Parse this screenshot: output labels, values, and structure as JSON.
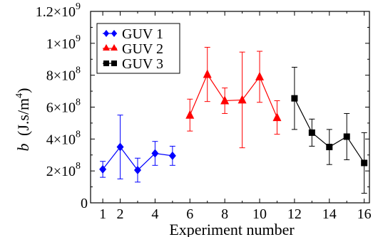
{
  "chart_data": {
    "type": "scatter",
    "xlabel": "Experiment number",
    "ylabel_symbol": "b",
    "ylabel_unit": "(J.s/m",
    "ylabel_unit_exp": "4",
    "ylabel_unit_close": ")",
    "xlim": [
      0.3,
      16.3
    ],
    "ylim": [
      0,
      1200000000
    ],
    "x_ticks": [
      1,
      2,
      4,
      6,
      8,
      10,
      12,
      14,
      16
    ],
    "y_ticks": [
      {
        "value": 0,
        "mantissa": "0",
        "exp": ""
      },
      {
        "value": 200000000,
        "mantissa": "2×10",
        "exp": "8"
      },
      {
        "value": 400000000,
        "mantissa": "4×10",
        "exp": "8"
      },
      {
        "value": 600000000,
        "mantissa": "6×10",
        "exp": "8"
      },
      {
        "value": 800000000,
        "mantissa": "8×10",
        "exp": "8"
      },
      {
        "value": 1000000000,
        "mantissa": "1×10",
        "exp": "9"
      },
      {
        "value": 1200000000,
        "mantissa": "1.2×10",
        "exp": "9"
      }
    ],
    "legend_position": "top-left",
    "series": [
      {
        "name": "GUV 1",
        "color": "#0000ff",
        "marker": "diamond",
        "points": [
          {
            "x": 1,
            "y": 210000000,
            "err_low": 50000000,
            "err_high": 50000000
          },
          {
            "x": 2,
            "y": 350000000,
            "err_low": 200000000,
            "err_high": 200000000
          },
          {
            "x": 3,
            "y": 205000000,
            "err_low": 75000000,
            "err_high": 75000000
          },
          {
            "x": 4,
            "y": 310000000,
            "err_low": 75000000,
            "err_high": 75000000
          },
          {
            "x": 5,
            "y": 295000000,
            "err_low": 60000000,
            "err_high": 60000000
          }
        ]
      },
      {
        "name": "GUV 2",
        "color": "#ff0000",
        "marker": "triangle",
        "points": [
          {
            "x": 6,
            "y": 550000000,
            "err_low": 100000000,
            "err_high": 100000000
          },
          {
            "x": 7,
            "y": 805000000,
            "err_low": 170000000,
            "err_high": 170000000
          },
          {
            "x": 8,
            "y": 640000000,
            "err_low": 80000000,
            "err_high": 80000000
          },
          {
            "x": 9,
            "y": 645000000,
            "err_low": 300000000,
            "err_high": 300000000
          },
          {
            "x": 10,
            "y": 790000000,
            "err_low": 160000000,
            "err_high": 160000000
          },
          {
            "x": 11,
            "y": 535000000,
            "err_low": 105000000,
            "err_high": 105000000
          }
        ]
      },
      {
        "name": "GUV 3",
        "color": "#000000",
        "marker": "square",
        "points": [
          {
            "x": 12,
            "y": 655000000,
            "err_low": 195000000,
            "err_high": 195000000
          },
          {
            "x": 13,
            "y": 440000000,
            "err_low": 85000000,
            "err_high": 85000000
          },
          {
            "x": 14,
            "y": 350000000,
            "err_low": 110000000,
            "err_high": 110000000
          },
          {
            "x": 15,
            "y": 415000000,
            "err_low": 145000000,
            "err_high": 145000000
          },
          {
            "x": 16,
            "y": 250000000,
            "err_low": 190000000,
            "err_high": 190000000
          }
        ]
      }
    ]
  }
}
